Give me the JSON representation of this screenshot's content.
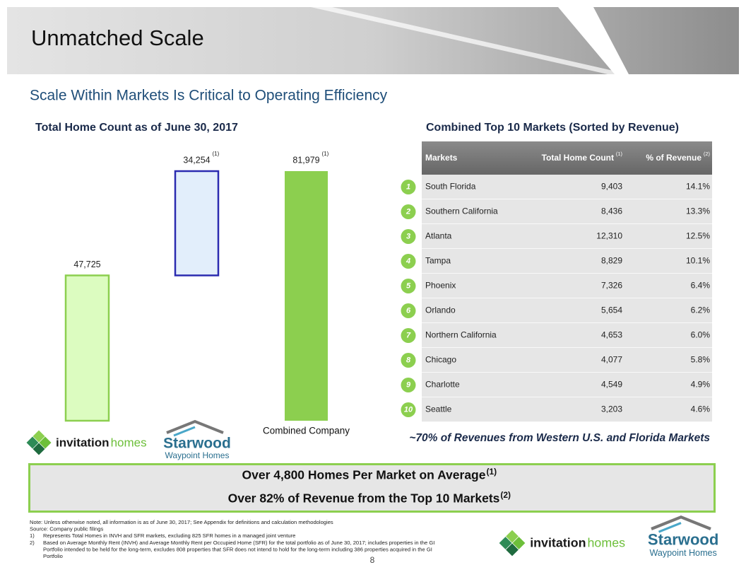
{
  "header": {
    "title": "Unmatched Scale"
  },
  "subtitle": "Scale Within Markets Is Critical to Operating Efficiency",
  "chart_data": {
    "type": "waterfall",
    "title": "Total Home Count as of June 30, 2017",
    "categories": [
      null,
      null,
      "Combined Company"
    ],
    "values": [
      47725,
      34254,
      81979
    ],
    "value_labels": [
      "47,725",
      "34,254",
      "81,979"
    ],
    "value_notes": [
      null,
      "(1)",
      "(1)"
    ],
    "colors": [
      "#dcfcc0",
      "#e2eefb",
      "#8ccf4f"
    ],
    "border_colors": [
      "#8ccf4f",
      "#2b2bb0",
      "#8ccf4f"
    ]
  },
  "logos": {
    "invitation": {
      "name": "invitation",
      "name2": "homes"
    },
    "starwood": {
      "name": "Starwood",
      "sub": "Waypoint Homes"
    }
  },
  "table": {
    "title": "Combined Top 10 Markets (Sorted by Revenue)",
    "columns": [
      {
        "text": "Markets"
      },
      {
        "text": "Total Home Count",
        "note": "(1)"
      },
      {
        "text": "% of Revenue",
        "note": "(2)"
      }
    ],
    "rows": [
      [
        "1",
        "South Florida",
        "9,403",
        "14.1%"
      ],
      [
        "2",
        "Southern California",
        "8,436",
        "13.3%"
      ],
      [
        "3",
        "Atlanta",
        "12,310",
        "12.5%"
      ],
      [
        "4",
        "Tampa",
        "8,829",
        "10.1%"
      ],
      [
        "5",
        "Phoenix",
        "7,326",
        "6.4%"
      ],
      [
        "6",
        "Orlando",
        "5,654",
        "6.2%"
      ],
      [
        "7",
        "Northern California",
        "4,653",
        "6.0%"
      ],
      [
        "8",
        "Chicago",
        "4,077",
        "5.8%"
      ],
      [
        "9",
        "Charlotte",
        "4,549",
        "4.9%"
      ],
      [
        "10",
        "Seattle",
        "3,203",
        "4.6%"
      ]
    ]
  },
  "table_note": "~70% of Revenues from Western U.S. and Florida Markets",
  "callout": [
    {
      "text": "Over 4,800 Homes Per Market on Average",
      "note": "(1)"
    },
    {
      "text": "Over 82% of Revenue from the Top 10 Markets",
      "note": "(2)"
    }
  ],
  "footnotes": [
    "Note: Unless otherwise noted, all information is as of June 30, 2017; See Appendix for definitions and calculation methodologies",
    "Source: Company public filings",
    "1)",
    "Represents Total Homes in INVH and SFR markets, excluding 825 SFR homes in a managed joint venture",
    "2)",
    "Based on Average Monthly Rent (INVH) and Average Monthly Rent per Occupied Home (SFR) for the total portfolio as of June 30, 2017; includes properties in the GI",
    "Portfolio intended to be held for the long-term, excludes 808 properties that SFR does not intend to hold for the long-term including 386 properties acquired in the GI",
    "Portfolio"
  ],
  "page_number": "8"
}
